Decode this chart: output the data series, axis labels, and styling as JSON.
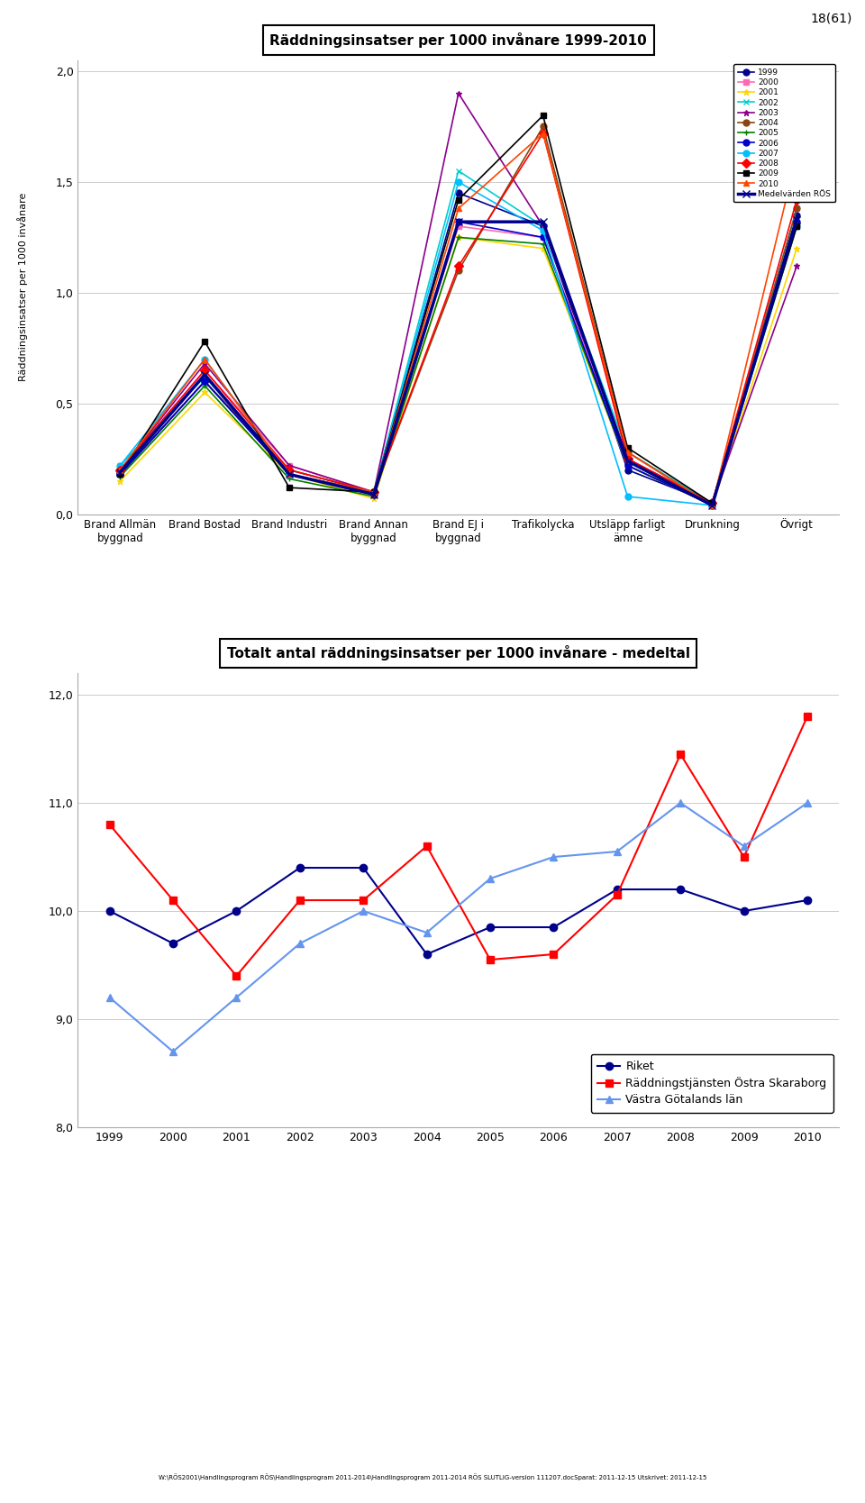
{
  "chart1": {
    "title": "Räddningsinsatser per 1000 invånare 1999-2010",
    "ylabel": "Räddningsinsatser per 1000 invånare",
    "categories": [
      "Brand Allmän\nbyggnad",
      "Brand Bostad",
      "Brand Industri",
      "Brand Annan\nbyggnad",
      "Brand EJ i\nbyggnad",
      "Trafikolycka",
      "Utsläpp farligt\nämne",
      "Drunkning",
      "Övrigt"
    ],
    "ylim": [
      0.0,
      2.0
    ],
    "yticks": [
      0.0,
      0.5,
      1.0,
      1.5,
      2.0
    ],
    "ytick_labels": [
      "0,0",
      "0,5",
      "1,0",
      "1,5",
      "2,0"
    ],
    "series_order": [
      "1999",
      "2000",
      "2001",
      "2002",
      "2003",
      "2004",
      "2005",
      "2006",
      "2007",
      "2008",
      "2009",
      "2010",
      "Medelvärden RÖS"
    ],
    "series": {
      "1999": {
        "color": "#00008B",
        "marker": "o",
        "linewidth": 1.2,
        "values": [
          0.18,
          0.6,
          0.18,
          0.1,
          1.45,
          1.3,
          0.2,
          0.05,
          1.35
        ]
      },
      "2000": {
        "color": "#FF69B4",
        "marker": "s",
        "linewidth": 1.2,
        "values": [
          0.2,
          0.65,
          0.22,
          0.1,
          1.3,
          1.25,
          0.25,
          0.05,
          1.3
        ]
      },
      "2001": {
        "color": "#FFD700",
        "marker": "*",
        "linewidth": 1.2,
        "values": [
          0.15,
          0.55,
          0.18,
          0.07,
          1.25,
          1.2,
          0.22,
          0.04,
          1.2
        ]
      },
      "2002": {
        "color": "#00CED1",
        "marker": "x",
        "linewidth": 1.2,
        "values": [
          0.22,
          0.62,
          0.2,
          0.1,
          1.55,
          1.3,
          0.28,
          0.05,
          1.38
        ]
      },
      "2003": {
        "color": "#8B008B",
        "marker": "*",
        "linewidth": 1.2,
        "values": [
          0.2,
          0.68,
          0.22,
          0.1,
          1.9,
          1.3,
          0.25,
          0.05,
          1.12
        ]
      },
      "2004": {
        "color": "#8B4513",
        "marker": "o",
        "linewidth": 1.2,
        "values": [
          0.18,
          0.6,
          0.2,
          0.1,
          1.1,
          1.75,
          0.28,
          0.04,
          1.38
        ]
      },
      "2005": {
        "color": "#008000",
        "marker": "+",
        "linewidth": 1.2,
        "values": [
          0.17,
          0.58,
          0.16,
          0.08,
          1.25,
          1.22,
          0.22,
          0.04,
          1.3
        ]
      },
      "2006": {
        "color": "#0000CD",
        "marker": "o",
        "linewidth": 1.2,
        "values": [
          0.18,
          0.6,
          0.18,
          0.09,
          1.32,
          1.25,
          0.22,
          0.04,
          1.32
        ]
      },
      "2007": {
        "color": "#00BFFF",
        "marker": "o",
        "linewidth": 1.2,
        "values": [
          0.22,
          0.7,
          0.18,
          0.1,
          1.5,
          1.28,
          0.08,
          0.04,
          1.3
        ]
      },
      "2008": {
        "color": "#FF0000",
        "marker": "D",
        "linewidth": 1.2,
        "values": [
          0.2,
          0.65,
          0.2,
          0.1,
          1.12,
          1.72,
          0.25,
          0.05,
          1.42
        ]
      },
      "2009": {
        "color": "#000000",
        "marker": "s",
        "linewidth": 1.2,
        "values": [
          0.18,
          0.78,
          0.12,
          0.1,
          1.42,
          1.8,
          0.3,
          0.05,
          1.3
        ]
      },
      "2010": {
        "color": "#FF4500",
        "marker": "^",
        "linewidth": 1.2,
        "values": [
          0.2,
          0.7,
          0.18,
          0.1,
          1.38,
          1.72,
          0.28,
          0.04,
          1.62
        ]
      },
      "Medelvärden RÖS": {
        "color": "#00008B",
        "marker": "x",
        "linewidth": 2.5,
        "values": [
          0.19,
          0.63,
          0.18,
          0.09,
          1.32,
          1.32,
          0.24,
          0.04,
          1.33
        ]
      }
    }
  },
  "chart2": {
    "title": "Totalt antal räddningsinsatser per 1000 invånare - medeltal",
    "years": [
      1999,
      2000,
      2001,
      2002,
      2003,
      2004,
      2005,
      2006,
      2007,
      2008,
      2009,
      2010
    ],
    "ylim": [
      8.0,
      12.2
    ],
    "yticks": [
      8.0,
      9.0,
      10.0,
      11.0,
      12.0
    ],
    "ytick_labels": [
      "8,0",
      "9,0",
      "10,0",
      "11,0",
      "12,0"
    ],
    "series_order": [
      "Riket",
      "Räddningstjänsten Östra Skaraborg",
      "Västra Götalands län"
    ],
    "series": {
      "Riket": {
        "color": "#00008B",
        "marker": "o",
        "values": [
          10.0,
          9.7,
          10.0,
          10.4,
          10.4,
          9.6,
          9.85,
          9.85,
          10.2,
          10.2,
          10.0,
          10.1
        ]
      },
      "Räddningstjänsten Östra Skaraborg": {
        "color": "#FF0000",
        "marker": "s",
        "values": [
          10.8,
          10.1,
          9.4,
          10.1,
          10.1,
          10.6,
          9.55,
          9.6,
          10.15,
          11.45,
          10.5,
          11.8
        ]
      },
      "Västra Götalands län": {
        "color": "#6495ED",
        "marker": "^",
        "values": [
          9.2,
          8.7,
          9.2,
          9.7,
          10.0,
          9.8,
          10.3,
          10.5,
          10.55,
          11.0,
          10.6,
          11.0
        ]
      }
    }
  },
  "page_number": "18(61)",
  "footer": "W:\\RÖS2001\\Handlingsprogram RÖS\\Handlingsprogram 2011-2014\\Handlingsprogram 2011-2014 RÖS SLUTLIG-version 111207.docSparat: 2011-12-15 Utskrivet: 2011-12-15"
}
